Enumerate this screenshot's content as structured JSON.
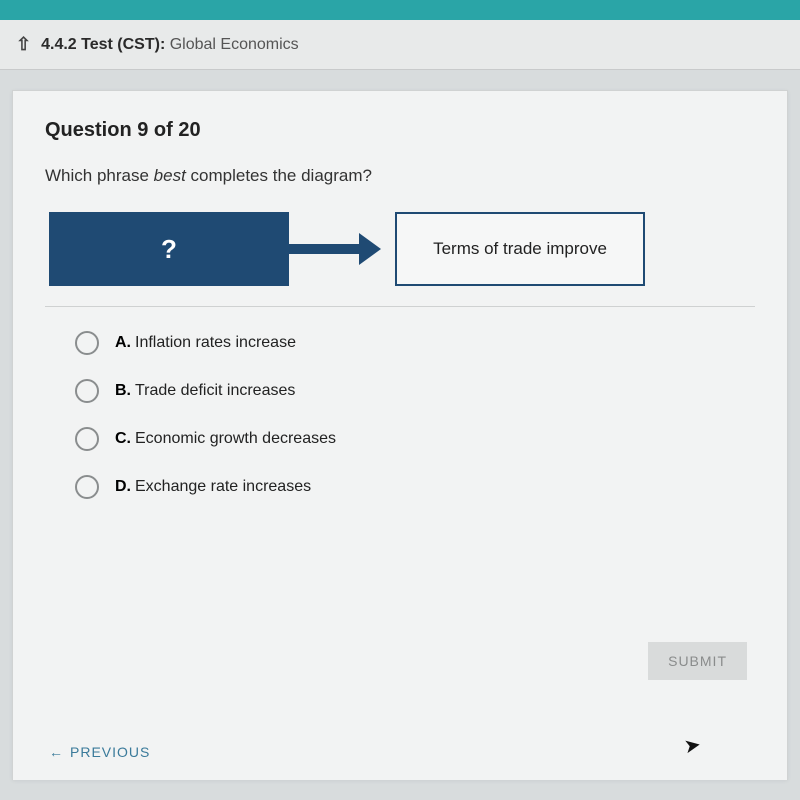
{
  "header": {
    "code": "4.4.2",
    "suffix": "Test (CST):",
    "title": "Global Economics"
  },
  "question": {
    "heading": "Question 9 of 20",
    "prompt_pre": "Which phrase ",
    "prompt_em": "best",
    "prompt_post": " completes the diagram?"
  },
  "diagram": {
    "left_label": "?",
    "right_label": "Terms of trade improve",
    "filled_color": "#1f4a73",
    "outline_color": "#1f4a73",
    "background": "#f6f7f7"
  },
  "options": [
    {
      "letter": "A.",
      "text": "Inflation rates increase"
    },
    {
      "letter": "B.",
      "text": "Trade deficit increases"
    },
    {
      "letter": "C.",
      "text": "Economic growth decreases"
    },
    {
      "letter": "D.",
      "text": "Exchange rate increases"
    }
  ],
  "buttons": {
    "submit": "SUBMIT",
    "previous": "PREVIOUS"
  }
}
